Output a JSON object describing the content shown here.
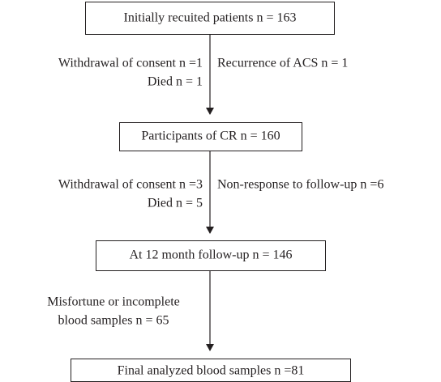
{
  "nodes": [
    {
      "label": "Initially recuited patients n = 163"
    },
    {
      "label": "Participants of CR n = 160"
    },
    {
      "label": "At 12 month follow-up n = 146"
    },
    {
      "label": "Final analyzed blood samples n =81"
    }
  ],
  "edges": [
    {
      "left": [
        "Withdrawal of consent n =1",
        "Died n = 1"
      ],
      "right": [
        "Recurrence of ACS n = 1"
      ]
    },
    {
      "left": [
        "Withdrawal of consent n =3",
        "Died n = 5"
      ],
      "right": [
        "Non-response to follow-up n =6"
      ]
    },
    {
      "left": [
        "Misfortune or incomplete",
        "blood samples n = 65"
      ]
    }
  ]
}
